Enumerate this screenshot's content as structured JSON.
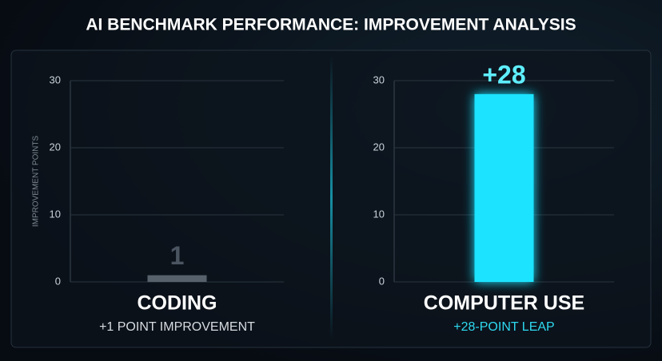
{
  "title": "AI BENCHMARK PERFORMANCE: IMPROVEMENT ANALYSIS",
  "chart_data": [
    {
      "type": "bar",
      "ylabel": "IMPROVEMENT POINTS",
      "categories": [
        "CODING"
      ],
      "subtitle": "+1 POINT IMPROVEMENT",
      "values": [
        1
      ],
      "color": "#56616c",
      "ylim": [
        0,
        30
      ],
      "yticks": [
        0,
        10,
        20,
        30
      ],
      "grid": true
    },
    {
      "type": "bar",
      "categories": [
        "COMPUTER USE"
      ],
      "subtitle": "+28-POINT LEAP",
      "values": [
        28
      ],
      "value_labels": [
        "+28"
      ],
      "color": "#1ee3ff",
      "ylim": [
        0,
        30
      ],
      "yticks": [
        0,
        10,
        20,
        30
      ],
      "grid": true
    }
  ]
}
